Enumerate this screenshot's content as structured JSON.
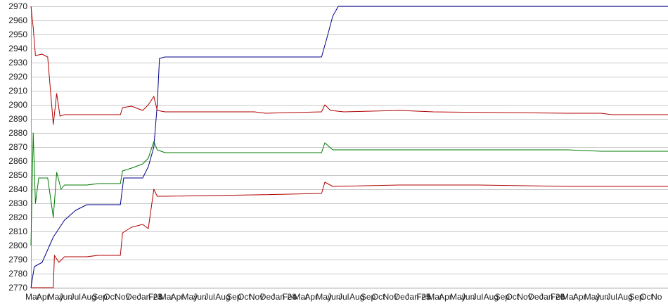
{
  "chart_data": {
    "type": "line",
    "title": "",
    "xlabel": "",
    "ylabel": "",
    "ylim": [
      2770,
      2970
    ],
    "y_ticks": [
      2770,
      2780,
      2790,
      2800,
      2810,
      2820,
      2830,
      2840,
      2850,
      2860,
      2870,
      2880,
      2890,
      2900,
      2910,
      2920,
      2930,
      2940,
      2950,
      2960,
      2970
    ],
    "y_tick_labels": [
      "2770",
      "2780",
      "2790",
      "2800",
      "2810",
      "2820",
      "2830",
      "2840",
      "2850",
      "2860",
      "2870",
      "2880",
      "2890",
      "2900",
      "2910",
      "2920",
      "2930",
      "2940",
      "2950",
      "2960",
      "2970"
    ],
    "x_tick_labels": [
      "Mar",
      "Apr",
      "May",
      "Jun",
      "Jul",
      "Aug",
      "Sep",
      "Oct",
      "Nov",
      "Dec",
      "Jan 23",
      "Feb",
      "Mar",
      "Apr",
      "May",
      "Jun",
      "Jul",
      "Aug",
      "Sep",
      "Oct",
      "Nov",
      "Dec",
      "Jan 24",
      "Feb",
      "Mar",
      "Apr",
      "May",
      "Jun",
      "Jul",
      "Aug",
      "Sep",
      "Oct",
      "Nov",
      "Dec",
      "Jan 25",
      "Feb",
      "Mar",
      "Apr",
      "May",
      "Jun",
      "Jul",
      "Aug",
      "Sep",
      "Oct",
      "Nov",
      "Dec",
      "Jan 26",
      "Feb",
      "Mar",
      "Apr",
      "May",
      "Jun",
      "Jul",
      "Aug",
      "Sep",
      "Oct",
      "No"
    ],
    "grid": true,
    "series": [
      {
        "color": "#00008b",
        "points": [
          [
            0,
            2770
          ],
          [
            0.3,
            2785
          ],
          [
            1,
            2788
          ],
          [
            2,
            2806
          ],
          [
            3,
            2818
          ],
          [
            4,
            2825
          ],
          [
            5,
            2829
          ],
          [
            6,
            2829
          ],
          [
            8,
            2829
          ],
          [
            8.3,
            2848
          ],
          [
            10,
            2848
          ],
          [
            10.5,
            2856
          ],
          [
            11,
            2870
          ],
          [
            11.3,
            2900
          ],
          [
            11.5,
            2933
          ],
          [
            12,
            2934
          ],
          [
            26,
            2934
          ],
          [
            26.5,
            2948
          ],
          [
            27,
            2963
          ],
          [
            27.5,
            2970
          ],
          [
            57,
            2970
          ]
        ]
      },
      {
        "color": "#b20000",
        "points": [
          [
            0,
            2970
          ],
          [
            0.2,
            2955
          ],
          [
            0.4,
            2935
          ],
          [
            1,
            2936
          ],
          [
            1.5,
            2934
          ],
          [
            2,
            2886
          ],
          [
            2.3,
            2908
          ],
          [
            2.6,
            2892
          ],
          [
            3,
            2893
          ],
          [
            4,
            2893
          ],
          [
            5,
            2893
          ],
          [
            6,
            2893
          ],
          [
            8,
            2893
          ],
          [
            8.2,
            2898
          ],
          [
            9,
            2899
          ],
          [
            10,
            2896
          ],
          [
            10.5,
            2900
          ],
          [
            11,
            2906
          ],
          [
            11.3,
            2896
          ],
          [
            12,
            2895
          ],
          [
            15,
            2895
          ],
          [
            20,
            2895
          ],
          [
            21,
            2894
          ],
          [
            26,
            2895
          ],
          [
            26.3,
            2900
          ],
          [
            26.8,
            2896
          ],
          [
            28,
            2895
          ],
          [
            33,
            2896
          ],
          [
            36,
            2895
          ],
          [
            48,
            2894
          ],
          [
            51,
            2894
          ],
          [
            52,
            2893
          ],
          [
            57,
            2893
          ]
        ]
      },
      {
        "color": "#007a00",
        "points": [
          [
            0,
            2800
          ],
          [
            0.2,
            2880
          ],
          [
            0.4,
            2830
          ],
          [
            0.7,
            2848
          ],
          [
            1.5,
            2848
          ],
          [
            2,
            2820
          ],
          [
            2.3,
            2852
          ],
          [
            2.7,
            2840
          ],
          [
            3,
            2843
          ],
          [
            5,
            2843
          ],
          [
            6,
            2844
          ],
          [
            8,
            2844
          ],
          [
            8.2,
            2853
          ],
          [
            9,
            2855
          ],
          [
            10,
            2858
          ],
          [
            10.5,
            2862
          ],
          [
            11,
            2874
          ],
          [
            11.3,
            2868
          ],
          [
            12,
            2866
          ],
          [
            20,
            2866
          ],
          [
            26,
            2866
          ],
          [
            26.3,
            2873
          ],
          [
            27,
            2868
          ],
          [
            33,
            2868
          ],
          [
            40,
            2868
          ],
          [
            48,
            2868
          ],
          [
            51,
            2867
          ],
          [
            57,
            2867
          ]
        ]
      },
      {
        "color": "#b20000",
        "points": [
          [
            0,
            2770
          ],
          [
            0.3,
            2770
          ],
          [
            1,
            2770
          ],
          [
            2,
            2770
          ],
          [
            2.1,
            2793
          ],
          [
            2.5,
            2788
          ],
          [
            3,
            2792
          ],
          [
            5,
            2792
          ],
          [
            6,
            2793
          ],
          [
            8,
            2793
          ],
          [
            8.2,
            2809
          ],
          [
            9,
            2813
          ],
          [
            10,
            2815
          ],
          [
            10.5,
            2812
          ],
          [
            11,
            2840
          ],
          [
            11.3,
            2835
          ],
          [
            12,
            2835
          ],
          [
            20,
            2836
          ],
          [
            26,
            2837
          ],
          [
            26.3,
            2845
          ],
          [
            27,
            2842
          ],
          [
            33,
            2843
          ],
          [
            40,
            2843
          ],
          [
            48,
            2842
          ],
          [
            57,
            2842
          ]
        ]
      }
    ]
  }
}
